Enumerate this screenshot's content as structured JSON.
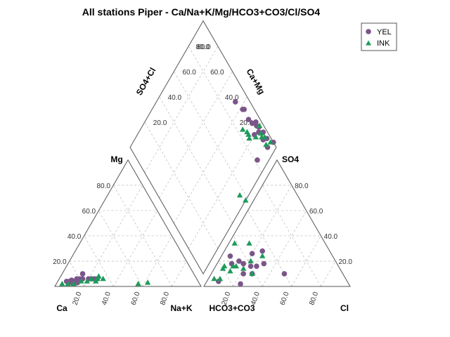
{
  "chart_data": {
    "type": "scatter",
    "title": "All stations Piper - Ca/Na+K/Mg/HCO3+CO3/Cl/SO4",
    "labels": {
      "cation_left": "Ca",
      "cation_right": "Na+K",
      "cation_top": "Mg",
      "anion_left": "HCO3+CO3",
      "anion_right": "Cl",
      "anion_top": "SO4",
      "diamond_left": "SO4+Cl",
      "diamond_right": "Ca+Mg"
    },
    "ticks": [
      "20.0",
      "40.0",
      "60.0",
      "80.0"
    ],
    "legend": {
      "position": "top-right"
    },
    "grid": true,
    "series": [
      {
        "name": "YEL",
        "marker": "circle",
        "color": "#7b5589",
        "cations": [
          {
            "ca": 90,
            "na_k": 6,
            "mg": 4
          },
          {
            "ca": 88,
            "na_k": 8,
            "mg": 4
          },
          {
            "ca": 86,
            "na_k": 9,
            "mg": 5
          },
          {
            "ca": 84,
            "na_k": 12,
            "mg": 4
          },
          {
            "ca": 82,
            "na_k": 12,
            "mg": 6
          },
          {
            "ca": 80,
            "na_k": 14,
            "mg": 6
          },
          {
            "ca": 78,
            "na_k": 16,
            "mg": 6
          },
          {
            "ca": 76,
            "na_k": 14,
            "mg": 10
          },
          {
            "ca": 74,
            "na_k": 20,
            "mg": 6
          },
          {
            "ca": 72,
            "na_k": 22,
            "mg": 6
          },
          {
            "ca": 70,
            "na_k": 24,
            "mg": 6
          },
          {
            "ca": 68,
            "na_k": 26,
            "mg": 6
          },
          {
            "ca": 87,
            "na_k": 10,
            "mg": 3
          },
          {
            "ca": 83,
            "na_k": 14,
            "mg": 3
          }
        ],
        "anions": [
          {
            "hco3_co3": 88,
            "cl": 8,
            "so4": 4
          },
          {
            "hco3_co3": 74,
            "cl": 24,
            "so4": 2
          },
          {
            "hco3_co3": 40,
            "cl": 50,
            "so4": 10
          },
          {
            "hco3_co3": 72,
            "cl": 10,
            "so4": 18
          },
          {
            "hco3_co3": 66,
            "cl": 14,
            "so4": 20
          },
          {
            "hco3_co3": 64,
            "cl": 18,
            "so4": 18
          },
          {
            "hco3_co3": 60,
            "cl": 24,
            "so4": 16
          },
          {
            "hco3_co3": 56,
            "cl": 28,
            "so4": 16
          },
          {
            "hco3_co3": 54,
            "cl": 20,
            "so4": 26
          },
          {
            "hco3_co3": 46,
            "cl": 26,
            "so4": 28
          },
          {
            "hco3_co3": 50,
            "cl": 32,
            "so4": 18
          },
          {
            "hco3_co3": 68,
            "cl": 22,
            "so4": 10
          },
          {
            "hco3_co3": 70,
            "cl": 6,
            "so4": 24
          },
          {
            "hco3_co3": 62,
            "cl": 28,
            "so4": 10
          }
        ],
        "diamond": [
          {
            "so4_cl": 46,
            "ca_mg": 90
          },
          {
            "so4_cl": 38,
            "ca_mg": 92
          },
          {
            "so4_cl": 37,
            "ca_mg": 93
          },
          {
            "so4_cl": 30,
            "ca_mg": 92
          },
          {
            "so4_cl": 26,
            "ca_mg": 93
          },
          {
            "so4_cl": 24,
            "ca_mg": 96
          },
          {
            "so4_cl": 22,
            "ca_mg": 95
          },
          {
            "so4_cl": 20,
            "ca_mg": 96
          },
          {
            "so4_cl": 20,
            "ca_mg": 90
          },
          {
            "so4_cl": 18,
            "ca_mg": 94
          },
          {
            "so4_cl": 15,
            "ca_mg": 97
          },
          {
            "so4_cl": 12,
            "ca_mg": 94
          },
          {
            "so4_cl": 10,
            "ca_mg": 97
          },
          {
            "so4_cl": 6,
            "ca_mg": 94
          },
          {
            "so4_cl": 8,
            "ca_mg": 82
          },
          {
            "so4_cl": 4,
            "ca_mg": 100
          }
        ]
      },
      {
        "name": "INK",
        "marker": "triangle",
        "color": "#1e9a5a",
        "cations": [
          {
            "ca": 94,
            "na_k": 4,
            "mg": 2
          },
          {
            "ca": 90,
            "na_k": 8,
            "mg": 2
          },
          {
            "ca": 86,
            "na_k": 12,
            "mg": 2
          },
          {
            "ca": 80,
            "na_k": 16,
            "mg": 4
          },
          {
            "ca": 76,
            "na_k": 20,
            "mg": 4
          },
          {
            "ca": 72,
            "na_k": 22,
            "mg": 6
          },
          {
            "ca": 68,
            "na_k": 26,
            "mg": 6
          },
          {
            "ca": 66,
            "na_k": 26,
            "mg": 8
          },
          {
            "ca": 64,
            "na_k": 30,
            "mg": 6
          },
          {
            "ca": 70,
            "na_k": 26,
            "mg": 4
          },
          {
            "ca": 42,
            "na_k": 56,
            "mg": 2
          },
          {
            "ca": 35,
            "na_k": 62,
            "mg": 3
          }
        ],
        "anions": [
          {
            "hco3_co3": 90,
            "cl": 4,
            "so4": 6
          },
          {
            "hco3_co3": 86,
            "cl": 8,
            "so4": 6
          },
          {
            "hco3_co3": 80,
            "cl": 6,
            "so4": 14
          },
          {
            "hco3_co3": 76,
            "cl": 12,
            "so4": 12
          },
          {
            "hco3_co3": 72,
            "cl": 12,
            "so4": 16
          },
          {
            "hco3_co3": 70,
            "cl": 14,
            "so4": 16
          },
          {
            "hco3_co3": 66,
            "cl": 20,
            "so4": 14
          },
          {
            "hco3_co3": 62,
            "cl": 28,
            "so4": 10
          },
          {
            "hco3_co3": 58,
            "cl": 22,
            "so4": 20
          },
          {
            "hco3_co3": 48,
            "cl": 28,
            "so4": 24
          },
          {
            "hco3_co3": 62,
            "cl": 4,
            "so4": 34
          },
          {
            "hco3_co3": 52,
            "cl": 14,
            "so4": 34
          },
          {
            "hco3_co3": 78,
            "cl": 6,
            "so4": 16
          }
        ],
        "diamond": [
          {
            "so4_cl": 30,
            "ca_mg": 84
          },
          {
            "so4_cl": 26,
            "ca_mg": 86
          },
          {
            "so4_cl": 24,
            "ca_mg": 86
          },
          {
            "so4_cl": 22,
            "ca_mg": 85
          },
          {
            "so4_cl": 20,
            "ca_mg": 97
          },
          {
            "so4_cl": 18,
            "ca_mg": 90
          },
          {
            "so4_cl": 16,
            "ca_mg": 95
          },
          {
            "so4_cl": 14,
            "ca_mg": 94
          },
          {
            "so4_cl": 12,
            "ca_mg": 96
          },
          {
            "so4_cl": 8,
            "ca_mg": 94
          },
          {
            "so4_cl": 0,
            "ca_mg": 58
          },
          {
            "so4_cl": 6,
            "ca_mg": 56
          },
          {
            "so4_cl": 6,
            "ca_mg": 98
          }
        ]
      }
    ]
  }
}
